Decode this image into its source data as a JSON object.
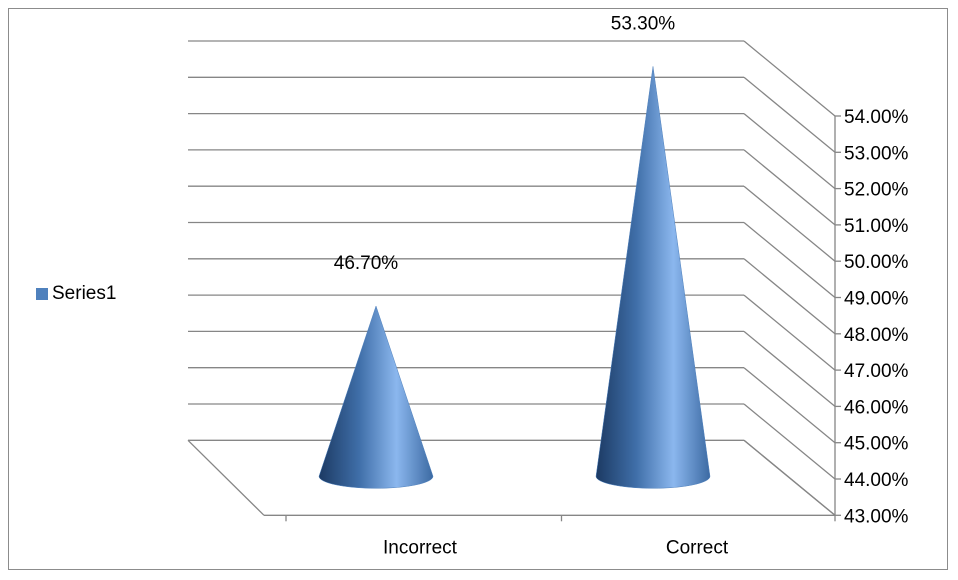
{
  "chart_data": {
    "type": "cone",
    "categories": [
      "Incorrect",
      "Correct"
    ],
    "series": [
      {
        "name": "Series1",
        "values": [
          46.7,
          53.3
        ],
        "data_labels": [
          "46.70%",
          "53.30%"
        ]
      }
    ],
    "ylim": [
      43,
      54
    ],
    "y_ticks": [
      "43.00%",
      "44.00%",
      "45.00%",
      "46.00%",
      "47.00%",
      "48.00%",
      "49.00%",
      "50.00%",
      "51.00%",
      "52.00%",
      "53.00%",
      "54.00%"
    ],
    "y_axis_side": "right",
    "grid": true,
    "legend_position": "left",
    "colors": {
      "series": "#4f81bd",
      "grid": "#868686"
    }
  }
}
